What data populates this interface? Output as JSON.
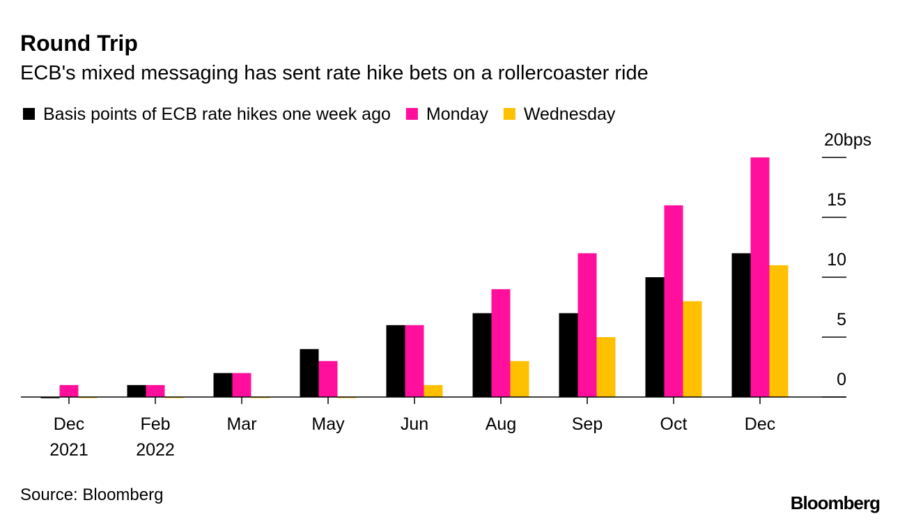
{
  "chart_data": {
    "type": "bar",
    "title": "Round Trip",
    "subtitle": "ECB's mixed messaging has sent rate hike bets on a rollercoaster ride",
    "source": "Source: Bloomberg",
    "brand": "Bloomberg",
    "categories": [
      "Dec 2021",
      "Feb 2022",
      "Mar",
      "May",
      "Jun",
      "Aug",
      "Sep",
      "Oct",
      "Dec"
    ],
    "series": [
      {
        "name": "Basis points of ECB rate hikes one week ago",
        "color": "#000000",
        "values": [
          -0.1,
          1,
          2,
          4,
          6,
          7,
          7,
          10,
          12
        ]
      },
      {
        "name": "Monday",
        "color": "#ff0f9b",
        "values": [
          1,
          1,
          2,
          3,
          6,
          9,
          12,
          16,
          20
        ]
      },
      {
        "name": "Wednesday",
        "color": "#ffc000",
        "values": [
          0,
          0,
          0,
          0,
          1,
          3,
          5,
          8,
          11
        ]
      }
    ],
    "ylim": [
      0,
      20
    ],
    "yticks": [
      0,
      5,
      10,
      15,
      {
        "value": 20,
        "label": "20bps"
      }
    ],
    "grid": false
  }
}
